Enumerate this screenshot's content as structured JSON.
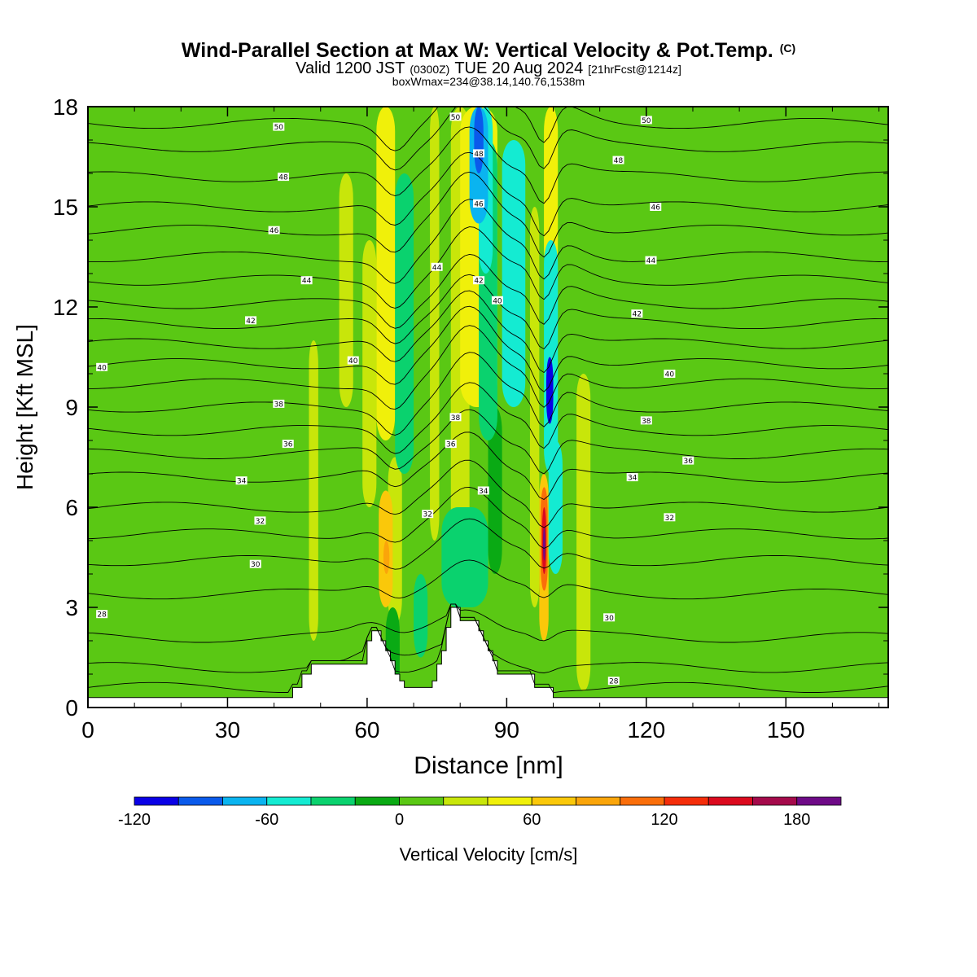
{
  "header": {
    "title": "Wind-Parallel Section at Max W: Vertical Velocity & Pot.Temp.",
    "title_mark": "(C)",
    "valid_a": "Valid 1200 JST",
    "valid_b": "(0300Z)",
    "valid_c": "TUE 20 Aug 2024",
    "valid_d": "[21hrFcst@1214z]",
    "box_info": "boxWmax=234@38.14,140.76,1538m"
  },
  "colorbar": {
    "label": "Vertical Velocity [cm/s]",
    "bounds": [
      -120,
      -100,
      -80,
      -60,
      -40,
      -20,
      0,
      20,
      40,
      60,
      80,
      100,
      120,
      140,
      160,
      180,
      200
    ],
    "colors": [
      "#0a00e6",
      "#0a5aeb",
      "#0ab4f0",
      "#14ebd2",
      "#0ad26e",
      "#0aaa14",
      "#5ac814",
      "#c8e60a",
      "#f0f00a",
      "#fac80a",
      "#faa50a",
      "#fa6e0a",
      "#f52d0a",
      "#dc0a1e",
      "#a50a4b",
      "#6e0a87"
    ],
    "tick_labels": [
      "-120",
      "-60",
      "0",
      "60",
      "120",
      "180"
    ],
    "tick_values": [
      -120,
      -60,
      0,
      60,
      120,
      180
    ]
  },
  "chart_data": {
    "type": "heatmap",
    "title": "Wind-Parallel Section at Max W: Vertical Velocity & Pot.Temp.",
    "xlabel": "Distance [nm]",
    "ylabel": "Height [Kft MSL]",
    "xlim": [
      0,
      172
    ],
    "ylim": [
      0,
      18
    ],
    "x_ticks": [
      0,
      30,
      60,
      90,
      120,
      150
    ],
    "x_tick_labels": [
      "0",
      "30",
      "60",
      "90",
      "120",
      "150"
    ],
    "y_ticks": [
      0,
      3,
      6,
      9,
      12,
      15,
      18
    ],
    "y_tick_labels": [
      "0",
      "3",
      "6",
      "9",
      "12",
      "15",
      "18"
    ],
    "background_color": "#5ac814",
    "w_bands": [
      {
        "x": [
          4,
          14
        ],
        "y": [
          0,
          18
        ],
        "w": 8
      },
      {
        "x": [
          27,
          31
        ],
        "y": [
          0,
          14
        ],
        "w": 8
      },
      {
        "x": [
          36,
          43
        ],
        "y": [
          0,
          18
        ],
        "w": 8
      },
      {
        "x": [
          54,
          60
        ],
        "y": [
          1.3,
          18
        ],
        "w": 8
      },
      {
        "x": [
          67,
          78
        ],
        "y": [
          0.6,
          18
        ],
        "w": 8
      },
      {
        "x": [
          84,
          92
        ],
        "y": [
          0.6,
          18
        ],
        "w": 8
      },
      {
        "x": [
          103,
          109
        ],
        "y": [
          0,
          18
        ],
        "w": 8
      },
      {
        "x": [
          112,
          121
        ],
        "y": [
          0,
          18
        ],
        "w": 8
      },
      {
        "x": [
          131,
          172
        ],
        "y": [
          0,
          18
        ],
        "w": 8
      },
      {
        "x": [
          0,
          30
        ],
        "y": [
          0,
          3.2
        ],
        "w": 8
      },
      {
        "x": [
          78,
          82
        ],
        "y": [
          3,
          18
        ],
        "w": 30
      },
      {
        "x": [
          59,
          62
        ],
        "y": [
          6,
          14
        ],
        "w": 30
      },
      {
        "x": [
          47.5,
          49.5
        ],
        "y": [
          2,
          11
        ],
        "w": 30
      },
      {
        "x": [
          105,
          108
        ],
        "y": [
          0.5,
          10
        ],
        "w": 30
      },
      {
        "x": [
          73.5,
          75.5
        ],
        "y": [
          5,
          18
        ],
        "w": 30
      },
      {
        "x": [
          64.5,
          67.5
        ],
        "y": [
          2.5,
          7.5
        ],
        "w": 30
      },
      {
        "x": [
          95,
          97
        ],
        "y": [
          3,
          15
        ],
        "w": 30
      },
      {
        "x": [
          54,
          57
        ],
        "y": [
          9,
          16
        ],
        "w": 30
      },
      {
        "x": [
          80,
          88
        ],
        "y": [
          9,
          18
        ],
        "w": 50
      },
      {
        "x": [
          62,
          66
        ],
        "y": [
          8,
          18
        ],
        "w": 50
      },
      {
        "x": [
          98,
          101
        ],
        "y": [
          13,
          18
        ],
        "w": 50
      },
      {
        "x": [
          62.5,
          65.5
        ],
        "y": [
          3,
          6.5
        ],
        "w": 70
      },
      {
        "x": [
          97,
          99
        ],
        "y": [
          2,
          7
        ],
        "w": 70
      },
      {
        "x": [
          63.5,
          64.8
        ],
        "y": [
          4,
          5
        ],
        "w": 90
      },
      {
        "x": [
          97.3,
          98.8
        ],
        "y": [
          3.5,
          6.6
        ],
        "w": 110
      },
      {
        "x": [
          97.6,
          98.5
        ],
        "y": [
          4,
          6
        ],
        "w": 150
      },
      {
        "x": [
          97.8,
          98.3
        ],
        "y": [
          4.4,
          5.4
        ],
        "w": 210
      },
      {
        "x": [
          64,
          67
        ],
        "y": [
          0.4,
          3
        ],
        "w": -10
      },
      {
        "x": [
          70,
          73
        ],
        "y": [
          1.5,
          4
        ],
        "w": -30
      },
      {
        "x": [
          76,
          86
        ],
        "y": [
          3,
          6
        ],
        "w": -30
      },
      {
        "x": [
          86,
          89
        ],
        "y": [
          4,
          9
        ],
        "w": -10
      },
      {
        "x": [
          66,
          70
        ],
        "y": [
          7,
          16
        ],
        "w": -30
      },
      {
        "x": [
          84,
          88
        ],
        "y": [
          8,
          17
        ],
        "w": -30
      },
      {
        "x": [
          89,
          94
        ],
        "y": [
          9,
          17
        ],
        "w": -50
      },
      {
        "x": [
          98,
          101
        ],
        "y": [
          7,
          14
        ],
        "w": -50
      },
      {
        "x": [
          98.5,
          100
        ],
        "y": [
          8.5,
          10.5
        ],
        "w": -110
      },
      {
        "x": [
          84,
          87
        ],
        "y": [
          13,
          18
        ],
        "w": -50
      },
      {
        "x": [
          82,
          86
        ],
        "y": [
          14.5,
          18
        ],
        "w": -70
      },
      {
        "x": [
          83,
          85
        ],
        "y": [
          16,
          18
        ],
        "w": -90
      },
      {
        "x": [
          99,
          102
        ],
        "y": [
          4,
          8
        ],
        "w": -50
      }
    ],
    "terrain": {
      "x": [
        0,
        44,
        44,
        46,
        46,
        48,
        48,
        60,
        60,
        61,
        61,
        63,
        63,
        64,
        64,
        65,
        65,
        66,
        66,
        67,
        67,
        68,
        68,
        69,
        69,
        74,
        74,
        75,
        75,
        76,
        76,
        77,
        77,
        78,
        78,
        80,
        80,
        84,
        84,
        85,
        85,
        86,
        86,
        87,
        87,
        88,
        88,
        90,
        90,
        96,
        96,
        100,
        100,
        172
      ],
      "y": [
        0.3,
        0.3,
        0.6,
        0.6,
        1.0,
        1.0,
        1.3,
        1.3,
        2.0,
        2.0,
        2.3,
        2.3,
        2.0,
        2.0,
        1.7,
        1.7,
        1.4,
        1.4,
        1.0,
        1.0,
        0.8,
        0.8,
        0.6,
        0.6,
        0.6,
        0.6,
        0.8,
        0.8,
        1.3,
        1.3,
        1.7,
        1.7,
        2.4,
        2.4,
        3.0,
        3.0,
        2.6,
        2.6,
        2.3,
        2.3,
        2.0,
        2.0,
        1.7,
        1.7,
        1.4,
        1.4,
        1.0,
        1.0,
        1.0,
        1.0,
        0.6,
        0.6,
        0.3,
        0.3
      ]
    },
    "theta_levels": [
      28,
      29,
      30,
      31,
      32,
      33,
      34,
      35,
      36,
      37,
      38,
      39,
      40,
      41,
      42,
      43,
      44,
      45,
      46,
      47,
      48,
      49,
      50
    ],
    "isentrope_base_height": [
      0.6,
      1.2,
      2.1,
      3.4,
      4.4,
      5.2,
      6.0,
      6.9,
      7.6,
      8.3,
      9.0,
      9.7,
      10.3,
      10.9,
      11.5,
      12.1,
      12.8,
      13.5,
      14.3,
      15.0,
      15.9,
      16.8,
      17.5
    ],
    "theta_labels": [
      {
        "text": "28",
        "x": 3,
        "y": 2.8
      },
      {
        "text": "28",
        "x": 113,
        "y": 0.8
      },
      {
        "text": "30",
        "x": 36,
        "y": 4.3
      },
      {
        "text": "30",
        "x": 112,
        "y": 2.7
      },
      {
        "text": "32",
        "x": 37,
        "y": 5.6
      },
      {
        "text": "32",
        "x": 73,
        "y": 5.8
      },
      {
        "text": "32",
        "x": 125,
        "y": 5.7
      },
      {
        "text": "34",
        "x": 33,
        "y": 6.8
      },
      {
        "text": "34",
        "x": 85,
        "y": 6.5
      },
      {
        "text": "34",
        "x": 117,
        "y": 6.9
      },
      {
        "text": "36",
        "x": 43,
        "y": 7.9
      },
      {
        "text": "36",
        "x": 78,
        "y": 7.9
      },
      {
        "text": "36",
        "x": 129,
        "y": 7.4
      },
      {
        "text": "38",
        "x": 41,
        "y": 9.1
      },
      {
        "text": "38",
        "x": 79,
        "y": 8.7
      },
      {
        "text": "38",
        "x": 120,
        "y": 8.6
      },
      {
        "text": "40",
        "x": 3,
        "y": 10.2
      },
      {
        "text": "40",
        "x": 57,
        "y": 10.4
      },
      {
        "text": "40",
        "x": 88,
        "y": 12.2
      },
      {
        "text": "40",
        "x": 125,
        "y": 10.0
      },
      {
        "text": "42",
        "x": 35,
        "y": 11.6
      },
      {
        "text": "42",
        "x": 84,
        "y": 12.8
      },
      {
        "text": "42",
        "x": 118,
        "y": 11.8
      },
      {
        "text": "44",
        "x": 47,
        "y": 12.8
      },
      {
        "text": "44",
        "x": 75,
        "y": 13.2
      },
      {
        "text": "44",
        "x": 121,
        "y": 13.4
      },
      {
        "text": "46",
        "x": 40,
        "y": 14.3
      },
      {
        "text": "46",
        "x": 84,
        "y": 15.1
      },
      {
        "text": "46",
        "x": 122,
        "y": 15.0
      },
      {
        "text": "48",
        "x": 42,
        "y": 15.9
      },
      {
        "text": "48",
        "x": 84,
        "y": 16.6
      },
      {
        "text": "48",
        "x": 114,
        "y": 16.4
      },
      {
        "text": "50",
        "x": 41,
        "y": 17.4
      },
      {
        "text": "50",
        "x": 79,
        "y": 17.7
      },
      {
        "text": "50",
        "x": 120,
        "y": 17.6
      }
    ]
  }
}
